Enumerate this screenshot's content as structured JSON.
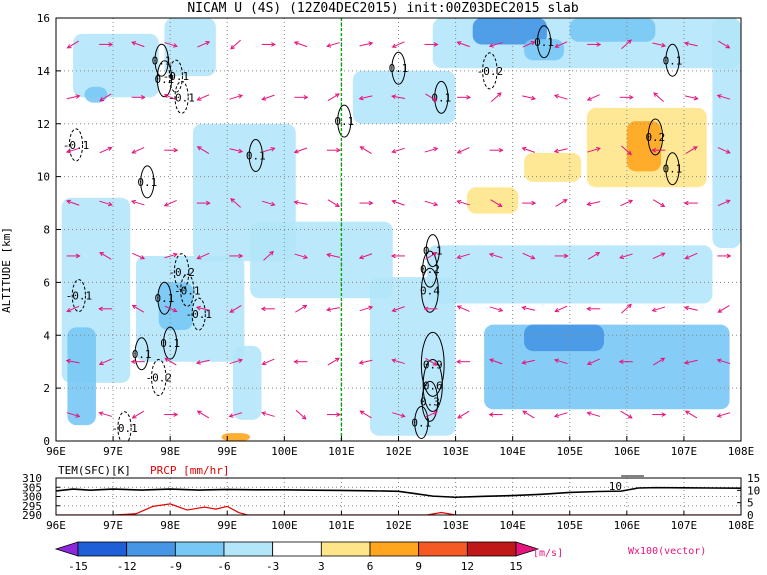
{
  "title": "NICAM U (4S) (12Z04DEC2015) init:00Z03DEC2015 slab",
  "colors": {
    "shade_pos": [
      "#ffffff",
      "#ffe58a",
      "#ffa51e",
      "#f55a24",
      "#c01818"
    ],
    "shade_neg": [
      "#ffffff",
      "#b4e6fa",
      "#78c8f5",
      "#4696e6",
      "#1e5fd7",
      "#8c28dc"
    ],
    "vector": "#e6147d",
    "surface_temp": "#000000",
    "precip": "#e60000",
    "lon_marker": "#00aa00"
  },
  "chart_data": [
    {
      "type": "heatmap",
      "title": "NICAM U (4S) (12Z04DEC2015) init:00Z03DEC2015 slab",
      "xlabel": "",
      "ylabel": "ALTITUDE [km]",
      "xlim": [
        96,
        108
      ],
      "ylim": [
        0,
        16
      ],
      "x_ticks": [
        "96E",
        "97E",
        "98E",
        "99E",
        "100E",
        "101E",
        "102E",
        "103E",
        "104E",
        "105E",
        "106E",
        "107E",
        "108E"
      ],
      "y_ticks": [
        "0",
        "2",
        "4",
        "6",
        "8",
        "10",
        "12",
        "14",
        "16"
      ],
      "grid": true,
      "marker_longitude": 101,
      "shaded_regions": [
        {
          "lon": [
            96.1,
            97.3
          ],
          "alt": [
            2.2,
            9.2
          ],
          "u": -4
        },
        {
          "lon": [
            96.2,
            96.7
          ],
          "alt": [
            0.6,
            4.3
          ],
          "u": -6
        },
        {
          "lon": [
            97.4,
            99.3
          ],
          "alt": [
            3.0,
            7.0
          ],
          "u": -4
        },
        {
          "lon": [
            97.8,
            98.4
          ],
          "alt": [
            4.2,
            6.0
          ],
          "u": -7
        },
        {
          "lon": [
            98.4,
            100.2
          ],
          "alt": [
            6.8,
            12.0
          ],
          "u": -4
        },
        {
          "lon": [
            99.1,
            99.6
          ],
          "alt": [
            0.8,
            3.6
          ],
          "u": -5
        },
        {
          "lon": [
            99.4,
            101.9
          ],
          "alt": [
            5.4,
            8.3
          ],
          "u": -4
        },
        {
          "lon": [
            101.5,
            103.0
          ],
          "alt": [
            0.2,
            6.2
          ],
          "u": -4
        },
        {
          "lon": [
            102.5,
            107.5
          ],
          "alt": [
            5.2,
            7.4
          ],
          "u": -4
        },
        {
          "lon": [
            103.5,
            107.8
          ],
          "alt": [
            1.2,
            4.4
          ],
          "u": -6
        },
        {
          "lon": [
            104.2,
            105.6
          ],
          "alt": [
            3.4,
            4.4
          ],
          "u": -9
        },
        {
          "lon": [
            96.3,
            97.8
          ],
          "alt": [
            13.0,
            15.4
          ],
          "u": -4
        },
        {
          "lon": [
            97.9,
            98.8
          ],
          "alt": [
            13.8,
            16.0
          ],
          "u": -4
        },
        {
          "lon": [
            101.2,
            103.0
          ],
          "alt": [
            12.0,
            14.0
          ],
          "u": -4
        },
        {
          "lon": [
            102.6,
            108.0
          ],
          "alt": [
            14.1,
            16.0
          ],
          "u": -5
        },
        {
          "lon": [
            103.3,
            104.6
          ],
          "alt": [
            15.0,
            16.0
          ],
          "u": -10
        },
        {
          "lon": [
            105.0,
            106.5
          ],
          "alt": [
            15.1,
            16.0
          ],
          "u": -8
        },
        {
          "lon": [
            107.5,
            108.0
          ],
          "alt": [
            7.3,
            16.0
          ],
          "u": -4
        },
        {
          "lon": [
            96.5,
            96.9
          ],
          "alt": [
            12.8,
            13.4
          ],
          "u": -8
        },
        {
          "lon": [
            104.2,
            104.9
          ],
          "alt": [
            14.4,
            15.2
          ],
          "u": -8
        },
        {
          "lon": [
            105.3,
            107.4
          ],
          "alt": [
            9.6,
            12.6
          ],
          "u": 4
        },
        {
          "lon": [
            104.2,
            105.2
          ],
          "alt": [
            9.8,
            10.9
          ],
          "u": 4
        },
        {
          "lon": [
            103.2,
            104.1
          ],
          "alt": [
            8.6,
            9.6
          ],
          "u": 4
        },
        {
          "lon": [
            106.0,
            106.6
          ],
          "alt": [
            10.2,
            12.1
          ],
          "u": 7
        },
        {
          "lon": [
            98.9,
            99.4
          ],
          "alt": [
            0.0,
            0.3
          ],
          "u": 6
        }
      ],
      "contours": [
        {
          "level": -0.1,
          "label": "-0.1",
          "lon": 96.35,
          "alt": 11.2
        },
        {
          "level": 0.1,
          "label": "0.1",
          "lon": 97.85,
          "alt": 14.4
        },
        {
          "level": -0.1,
          "label": "-0.1",
          "lon": 98.1,
          "alt": 13.8
        },
        {
          "level": 0.2,
          "label": "0.2",
          "lon": 97.9,
          "alt": 13.7
        },
        {
          "level": -0.1,
          "label": "-0.1",
          "lon": 98.2,
          "alt": 13.0
        },
        {
          "level": 0.1,
          "label": "0.1",
          "lon": 97.6,
          "alt": 9.8
        },
        {
          "level": 0.1,
          "label": "0.1",
          "lon": 99.5,
          "alt": 10.8
        },
        {
          "level": 0.1,
          "label": "0.1",
          "lon": 101.05,
          "alt": 12.1
        },
        {
          "level": -0.1,
          "label": "-0.1",
          "lon": 96.4,
          "alt": 5.5
        },
        {
          "level": 0.1,
          "label": "0.1",
          "lon": 97.9,
          "alt": 5.4
        },
        {
          "level": -0.2,
          "label": "-0.2",
          "lon": 98.2,
          "alt": 6.4
        },
        {
          "level": -0.1,
          "label": "-0.1",
          "lon": 98.3,
          "alt": 5.7
        },
        {
          "level": 0.1,
          "label": "0.1",
          "lon": 98.0,
          "alt": 3.7
        },
        {
          "level": -0.1,
          "label": "-0.1",
          "lon": 98.5,
          "alt": 4.8
        },
        {
          "level": 0.1,
          "label": "0.1",
          "lon": 97.5,
          "alt": 3.3
        },
        {
          "level": -0.2,
          "label": "-0.2",
          "lon": 97.8,
          "alt": 2.4
        },
        {
          "level": -0.1,
          "label": "-0.1",
          "lon": 97.2,
          "alt": 0.5
        },
        {
          "level": 0.1,
          "label": "0.1",
          "lon": 102.4,
          "alt": 0.7
        },
        {
          "level": 0.1,
          "label": "0.1",
          "lon": 102.0,
          "alt": 14.1
        },
        {
          "level": -0.2,
          "label": "-0.2",
          "lon": 103.6,
          "alt": 14.0
        },
        {
          "level": 0.1,
          "label": "0.1",
          "lon": 102.75,
          "alt": 13.0
        },
        {
          "level": 0.1,
          "label": "0.1",
          "lon": 104.55,
          "alt": 15.1
        },
        {
          "level": 0.1,
          "label": "0.1",
          "lon": 106.8,
          "alt": 14.4
        },
        {
          "level": 0.2,
          "label": "0.2",
          "lon": 106.5,
          "alt": 11.5
        },
        {
          "level": 0.1,
          "label": "0.1",
          "lon": 106.8,
          "alt": 10.3
        },
        {
          "level": 0.1,
          "label": "0.1",
          "lon": 102.6,
          "alt": 7.2
        },
        {
          "level": 0.2,
          "label": "0.2",
          "lon": 102.55,
          "alt": 6.5
        },
        {
          "level": 0.4,
          "label": "0.4",
          "lon": 102.55,
          "alt": 5.7
        },
        {
          "level": 0.9,
          "label": "0.9",
          "lon": 102.6,
          "alt": 2.9
        },
        {
          "level": 0.6,
          "label": "0.6",
          "lon": 102.6,
          "alt": 2.1
        },
        {
          "level": 0.3,
          "label": "0.3",
          "lon": 102.55,
          "alt": 1.5
        }
      ],
      "vectors": {
        "name": "Wx100(vector)",
        "rows": [
          {
            "alt": 15.0,
            "u": [
              -3,
              4,
              -5,
              3,
              2,
              -2,
              4,
              -5,
              -3,
              4,
              -4,
              3,
              -5,
              -3,
              2,
              -4,
              3,
              2,
              4,
              -4,
              3
            ]
          },
          {
            "alt": 13.0,
            "u": [
              4,
              -3,
              5,
              -4,
              -2,
              3,
              -5,
              2,
              3,
              -4,
              -5,
              3,
              3,
              2,
              4,
              -3,
              -4,
              3,
              -2,
              4,
              -3
            ]
          },
          {
            "alt": 11.0,
            "u": [
              -3,
              2,
              -4,
              2,
              -3,
              4,
              3,
              -5,
              4,
              -3,
              -3,
              3,
              -4,
              3,
              -5,
              -4,
              3,
              2,
              -3,
              3,
              2
            ]
          },
          {
            "alt": 9.0,
            "u": [
              -5,
              3,
              -3,
              -4,
              3,
              -2,
              3,
              -5,
              3,
              3,
              -5,
              3,
              -3,
              3,
              3,
              3,
              -4,
              2,
              3,
              -3,
              4
            ]
          },
          {
            "alt": 7.0,
            "u": [
              5,
              -3,
              2,
              3,
              -4,
              3,
              2,
              3,
              -4,
              -5,
              -4,
              3,
              -3,
              -3,
              4,
              4,
              3,
              -3,
              2,
              -4,
              3
            ]
          },
          {
            "alt": 5.0,
            "u": [
              -4,
              -5,
              -3,
              2,
              -4,
              -3,
              -4,
              3,
              -5,
              3,
              -5,
              -3,
              -4,
              3,
              -4,
              -4,
              -3,
              2,
              -3,
              -4,
              -3
            ]
          },
          {
            "alt": 3.0,
            "u": [
              -5,
              -4,
              -5,
              -3,
              -4,
              3,
              -4,
              -3,
              3,
              -4,
              -3,
              3,
              -4,
              -5,
              -4,
              -3,
              -4,
              -5,
              3,
              -4,
              -3
            ]
          },
          {
            "alt": 1.0,
            "u": [
              3,
              -3,
              -3,
              3,
              -3,
              -3,
              -3,
              2,
              3,
              -3,
              3,
              2,
              -3,
              -3,
              -3,
              -3,
              -3,
              3,
              3,
              -3,
              -3
            ]
          }
        ]
      }
    },
    {
      "type": "line",
      "title": "TEM(SFC)[K]  PRCP [mm/hr]",
      "xlim": [
        96,
        108
      ],
      "x_ticks": [
        "96E",
        "97E",
        "98E",
        "99E",
        "100E",
        "101E",
        "102E",
        "103E",
        "104E",
        "105E",
        "106E",
        "107E",
        "108E"
      ],
      "left_axis": {
        "label": "TEM(SFC)[K]",
        "ticks": [
          "290",
          "295",
          "300",
          "305",
          "310"
        ],
        "ylim": [
          290,
          310
        ]
      },
      "right_axis": {
        "label": "PRCP [mm/hr]",
        "ticks": [
          "0",
          "5",
          "10",
          "15"
        ],
        "ylim": [
          0,
          15
        ]
      },
      "annotation": "10",
      "grid": true,
      "series": [
        {
          "name": "TEM(SFC)[K]",
          "x": [
            96.0,
            96.3,
            96.6,
            97.0,
            97.5,
            98.0,
            98.5,
            99.0,
            99.5,
            100.0,
            100.5,
            101.0,
            101.5,
            102.0,
            102.3,
            102.6,
            103.0,
            103.5,
            104.0,
            104.5,
            105.0,
            105.5,
            105.9,
            106.2,
            106.5,
            107.0,
            107.5,
            108.0
          ],
          "values": [
            303,
            304,
            303.4,
            304,
            303.5,
            304,
            303.5,
            303.8,
            303.6,
            303.6,
            303.4,
            303.3,
            303.1,
            302.8,
            301.5,
            300.2,
            299.6,
            300.1,
            300.5,
            301.2,
            302.2,
            302.7,
            302.9,
            304.6,
            304.8,
            304.7,
            304.6,
            304.5
          ]
        },
        {
          "name": "PRCP [mm/hr]",
          "x": [
            96.0,
            96.5,
            97.0,
            97.4,
            97.7,
            98.0,
            98.3,
            98.6,
            98.8,
            99.0,
            99.2,
            99.35,
            99.6,
            100.0,
            101.0,
            102.0,
            102.5,
            102.75,
            103.0,
            103.3,
            104.0,
            105.0,
            106.0,
            107.0,
            108.0
          ],
          "values": [
            0,
            0,
            0,
            0.5,
            3.5,
            4.5,
            2.0,
            3.2,
            2.4,
            3.5,
            1.0,
            0,
            0,
            0,
            0,
            0,
            0,
            1.0,
            0,
            0,
            0,
            0,
            0,
            0,
            0
          ]
        }
      ]
    },
    {
      "type": "colorbar",
      "boundaries": [
        "-15",
        "-12",
        "-9",
        "-6",
        "-3",
        "3",
        "6",
        "9",
        "12",
        "15"
      ],
      "unit": "[m/s]",
      "vector_label": "Wx100(vector)",
      "colors": [
        "#8c28dc",
        "#1e5fd7",
        "#4696e6",
        "#78c8f5",
        "#b4e6fa",
        "#ffffff",
        "#ffe58a",
        "#ffa51e",
        "#f55a24",
        "#c01818",
        "#e6147d"
      ]
    }
  ]
}
